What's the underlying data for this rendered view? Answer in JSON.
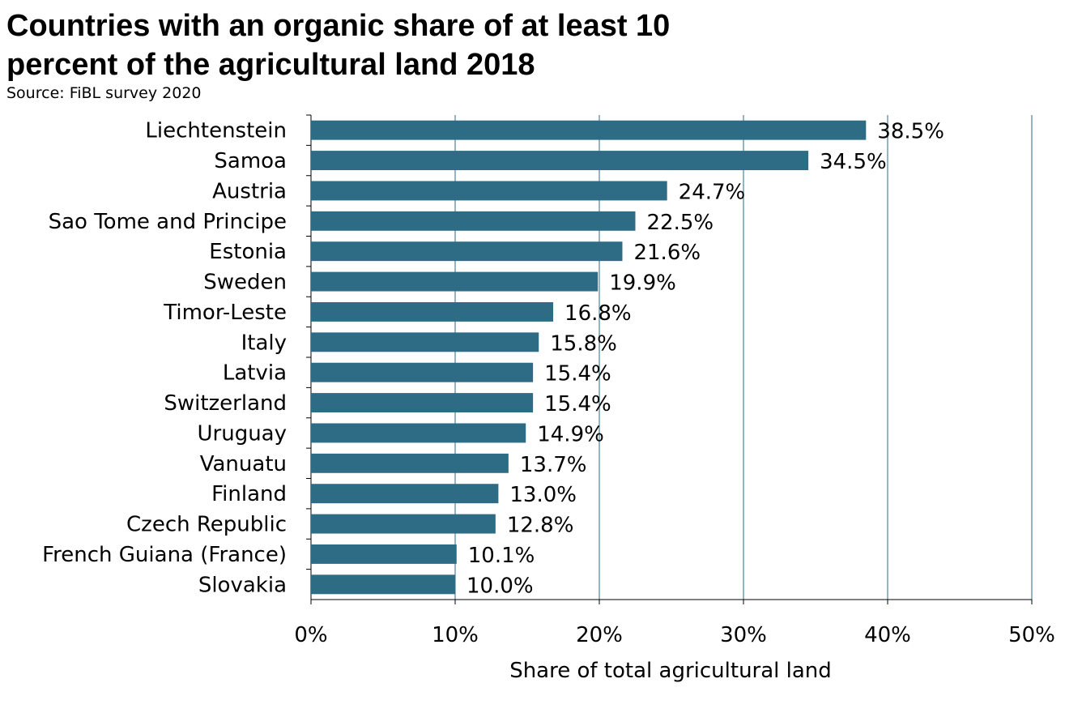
{
  "title_lines": [
    "Countries with an organic share of at least 10",
    "percent of the agricultural land 2018"
  ],
  "source": "Source: FiBL survey 2020",
  "chart_data": {
    "type": "bar",
    "orientation": "horizontal",
    "title": "Countries with an organic share of at least 10 percent of the agricultural land 2018",
    "subtitle": "Source: FiBL survey 2020",
    "xlabel": "Share of total agricultural land",
    "ylabel": "",
    "xlim": [
      0,
      50
    ],
    "x_ticks": [
      "0%",
      "10%",
      "20%",
      "30%",
      "40%",
      "50%"
    ],
    "grid": "vertical",
    "bar_color": "#2e6b84",
    "categories": [
      "Liechtenstein",
      "Samoa",
      "Austria",
      "Sao Tome and Principe",
      "Estonia",
      "Sweden",
      "Timor-Leste",
      "Italy",
      "Latvia",
      "Switzerland",
      "Uruguay",
      "Vanuatu",
      "Finland",
      "Czech Republic",
      "French Guiana (France)",
      "Slovakia"
    ],
    "values": [
      38.5,
      34.5,
      24.7,
      22.5,
      21.6,
      19.9,
      16.8,
      15.8,
      15.4,
      15.4,
      14.9,
      13.7,
      13.0,
      12.8,
      10.1,
      10.0
    ],
    "data_labels": [
      "38.5%",
      "34.5%",
      "24.7%",
      "22.5%",
      "21.6%",
      "19.9%",
      "16.8%",
      "15.8%",
      "15.4%",
      "15.4%",
      "14.9%",
      "13.7%",
      "13.0%",
      "12.8%",
      "10.1%",
      "10.0%"
    ]
  }
}
